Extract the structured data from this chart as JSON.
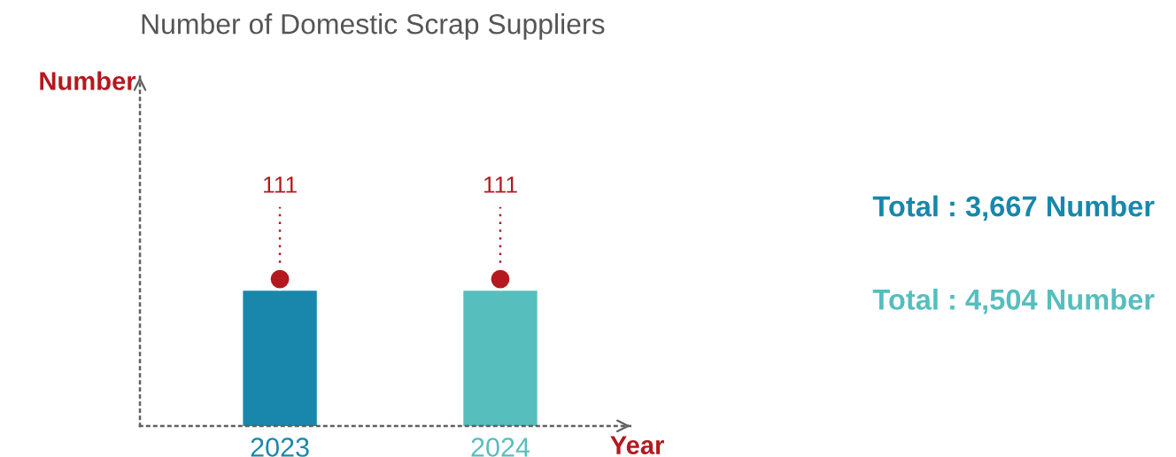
{
  "chart_data": {
    "type": "bar",
    "title": "Number of Domestic Scrap Suppliers",
    "xlabel": "Year",
    "categories": [
      "2023",
      "2024"
    ],
    "values": [
      111,
      111
    ],
    "colors": [
      "#1887ab",
      "#56bebd"
    ],
    "data_labels": true,
    "tick_labels": "x",
    "annotations": [
      "Number",
      "Total : 3,667 Number",
      "Total : 4,504 Number"
    ]
  }
}
